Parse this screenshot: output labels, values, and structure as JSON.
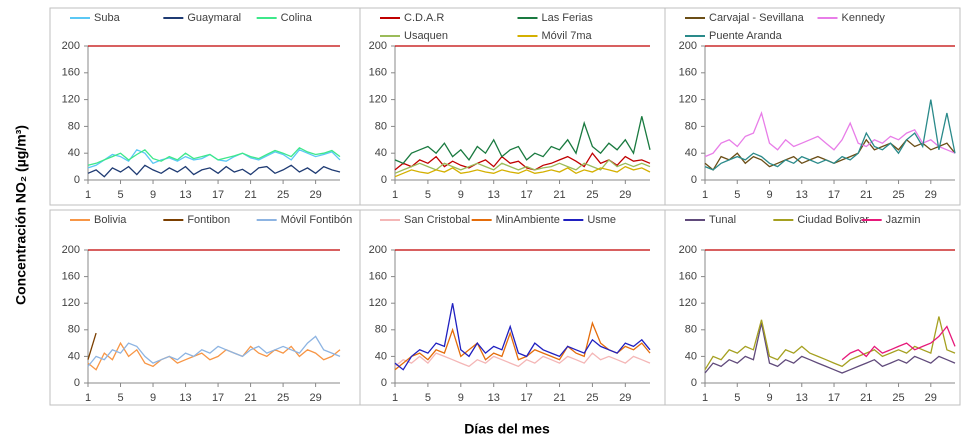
{
  "y_label": "Concentración NO₂ (µg/m³)",
  "x_label": "Días del mes",
  "chart_data": [
    {
      "type": "line",
      "x": [
        1,
        2,
        3,
        4,
        5,
        6,
        7,
        8,
        9,
        10,
        11,
        12,
        13,
        14,
        15,
        16,
        17,
        18,
        19,
        20,
        21,
        22,
        23,
        24,
        25,
        26,
        27,
        28,
        29,
        30,
        31,
        32
      ],
      "xlim": [
        1,
        32
      ],
      "xticks": [
        1,
        5,
        9,
        13,
        17,
        21,
        25,
        29
      ],
      "ylim": [
        0,
        200
      ],
      "yticks": [
        0,
        40,
        80,
        120,
        160,
        200
      ],
      "threshold": {
        "value": 200,
        "color": "#c00000"
      },
      "series": [
        {
          "name": "Suba",
          "color": "#5bc8f5",
          "values": [
            18,
            22,
            30,
            38,
            35,
            28,
            45,
            40,
            25,
            30,
            33,
            28,
            35,
            30,
            32,
            38,
            30,
            28,
            35,
            40,
            33,
            30,
            36,
            42,
            38,
            30,
            45,
            40,
            35,
            38,
            42,
            30
          ]
        },
        {
          "name": "Guaymaral",
          "color": "#1f3b73",
          "values": [
            10,
            15,
            5,
            18,
            12,
            20,
            8,
            22,
            15,
            10,
            18,
            12,
            20,
            8,
            15,
            18,
            10,
            20,
            12,
            16,
            8,
            18,
            20,
            10,
            15,
            22,
            12,
            18,
            10,
            20,
            15,
            12
          ]
        },
        {
          "name": "Colina",
          "color": "#3ee88a",
          "values": [
            22,
            25,
            30,
            35,
            40,
            30,
            38,
            45,
            32,
            28,
            35,
            30,
            40,
            32,
            35,
            38,
            30,
            33,
            36,
            40,
            35,
            32,
            38,
            44,
            40,
            35,
            48,
            42,
            38,
            40,
            44,
            35
          ]
        }
      ]
    },
    {
      "type": "line",
      "x": [
        1,
        2,
        3,
        4,
        5,
        6,
        7,
        8,
        9,
        10,
        11,
        12,
        13,
        14,
        15,
        16,
        17,
        18,
        19,
        20,
        21,
        22,
        23,
        24,
        25,
        26,
        27,
        28,
        29,
        30,
        31,
        32
      ],
      "xlim": [
        1,
        32
      ],
      "xticks": [
        1,
        5,
        9,
        13,
        17,
        21,
        25,
        29
      ],
      "ylim": [
        0,
        200
      ],
      "yticks": [
        0,
        40,
        80,
        120,
        160,
        200
      ],
      "threshold": {
        "value": 200,
        "color": "#c00000"
      },
      "series": [
        {
          "name": "C.D.A.R",
          "color": "#c00000",
          "values": [
            15,
            25,
            20,
            30,
            25,
            35,
            20,
            28,
            22,
            18,
            25,
            30,
            20,
            35,
            25,
            28,
            18,
            15,
            22,
            25,
            30,
            35,
            28,
            20,
            40,
            25,
            30,
            22,
            35,
            28,
            30,
            25
          ]
        },
        {
          "name": "Las Ferias",
          "color": "#1a7a40",
          "values": [
            30,
            25,
            40,
            45,
            50,
            40,
            55,
            35,
            45,
            30,
            50,
            40,
            60,
            35,
            45,
            50,
            30,
            40,
            35,
            50,
            45,
            60,
            40,
            85,
            50,
            40,
            55,
            45,
            60,
            40,
            95,
            45
          ]
        },
        {
          "name": "Usaquen",
          "color": "#9bbb59",
          "values": [
            10,
            15,
            20,
            25,
            20,
            15,
            25,
            20,
            15,
            20,
            25,
            20,
            15,
            25,
            20,
            15,
            20,
            15,
            18,
            20,
            25,
            20,
            15,
            25,
            20,
            15,
            30,
            20,
            25,
            20,
            25,
            20
          ]
        },
        {
          "name": "Móvil 7ma",
          "color": "#d4b000",
          "values": [
            5,
            10,
            15,
            12,
            10,
            15,
            12,
            18,
            10,
            12,
            15,
            12,
            10,
            15,
            12,
            10,
            15,
            10,
            12,
            15,
            12,
            18,
            10,
            15,
            12,
            18,
            15,
            12,
            20,
            15,
            18,
            12
          ]
        }
      ]
    },
    {
      "type": "line",
      "x": [
        1,
        2,
        3,
        4,
        5,
        6,
        7,
        8,
        9,
        10,
        11,
        12,
        13,
        14,
        15,
        16,
        17,
        18,
        19,
        20,
        21,
        22,
        23,
        24,
        25,
        26,
        27,
        28,
        29,
        30,
        31,
        32
      ],
      "xlim": [
        1,
        32
      ],
      "xticks": [
        1,
        5,
        9,
        13,
        17,
        21,
        25,
        29
      ],
      "ylim": [
        0,
        200
      ],
      "yticks": [
        0,
        40,
        80,
        120,
        160,
        200
      ],
      "threshold": {
        "value": 200,
        "color": "#c00000"
      },
      "series": [
        {
          "name": "Carvajal - Sevillana",
          "color": "#6b4e16",
          "values": [
            25,
            15,
            35,
            30,
            40,
            25,
            35,
            30,
            20,
            25,
            30,
            35,
            25,
            30,
            35,
            30,
            25,
            30,
            35,
            40,
            60,
            45,
            50,
            55,
            45,
            60,
            50,
            55,
            45,
            50,
            55,
            40
          ]
        },
        {
          "name": "Kennedy",
          "color": "#e87de8",
          "values": [
            35,
            40,
            55,
            60,
            50,
            65,
            70,
            100,
            55,
            45,
            60,
            50,
            55,
            60,
            65,
            55,
            45,
            60,
            85,
            55,
            50,
            60,
            55,
            65,
            60,
            70,
            75,
            55,
            60,
            50,
            45,
            40
          ]
        },
        {
          "name": "Puente Aranda",
          "color": "#2a8a8a",
          "values": [
            20,
            15,
            25,
            30,
            35,
            30,
            40,
            35,
            25,
            20,
            30,
            25,
            35,
            30,
            25,
            30,
            25,
            35,
            30,
            40,
            70,
            50,
            45,
            55,
            40,
            60,
            70,
            50,
            120,
            45,
            100,
            40
          ]
        }
      ]
    },
    {
      "type": "line",
      "x": [
        1,
        2,
        3,
        4,
        5,
        6,
        7,
        8,
        9,
        10,
        11,
        12,
        13,
        14,
        15,
        16,
        17,
        18,
        19,
        20,
        21,
        22,
        23,
        24,
        25,
        26,
        27,
        28,
        29,
        30,
        31,
        32
      ],
      "xlim": [
        1,
        32
      ],
      "xticks": [
        1,
        5,
        9,
        13,
        17,
        21,
        25,
        29
      ],
      "ylim": [
        0,
        200
      ],
      "yticks": [
        0,
        40,
        80,
        120,
        160,
        200
      ],
      "threshold": {
        "value": 200,
        "color": "#c00000"
      },
      "series": [
        {
          "name": "Bolivia",
          "color": "#f79646",
          "values": [
            30,
            20,
            45,
            35,
            60,
            40,
            50,
            30,
            25,
            35,
            40,
            30,
            35,
            40,
            45,
            35,
            40,
            50,
            45,
            40,
            55,
            45,
            40,
            50,
            45,
            55,
            40,
            50,
            45,
            35,
            40,
            50
          ]
        },
        {
          "name": "Fontibon",
          "color": "#7b3f00",
          "values": [
            35,
            75,
            null,
            null,
            null,
            null,
            null,
            null,
            null,
            null,
            null,
            null,
            null,
            null,
            null,
            null,
            null,
            null,
            null,
            null,
            null,
            null,
            null,
            null,
            null,
            null,
            null,
            null,
            null,
            null,
            null,
            null
          ]
        },
        {
          "name": "Móvil Fontibón",
          "color": "#8db4e2",
          "values": [
            25,
            40,
            35,
            50,
            45,
            60,
            55,
            40,
            30,
            35,
            40,
            35,
            45,
            40,
            50,
            45,
            55,
            50,
            45,
            40,
            50,
            55,
            45,
            50,
            55,
            50,
            45,
            60,
            70,
            50,
            45,
            40
          ]
        }
      ]
    },
    {
      "type": "line",
      "x": [
        1,
        2,
        3,
        4,
        5,
        6,
        7,
        8,
        9,
        10,
        11,
        12,
        13,
        14,
        15,
        16,
        17,
        18,
        19,
        20,
        21,
        22,
        23,
        24,
        25,
        26,
        27,
        28,
        29,
        30,
        31,
        32
      ],
      "xlim": [
        1,
        32
      ],
      "xticks": [
        1,
        5,
        9,
        13,
        17,
        21,
        25,
        29
      ],
      "ylim": [
        0,
        200
      ],
      "yticks": [
        0,
        40,
        80,
        120,
        160,
        200
      ],
      "threshold": {
        "value": 200,
        "color": "#c00000"
      },
      "series": [
        {
          "name": "San Cristobal",
          "color": "#f4b6b6",
          "values": [
            25,
            35,
            30,
            40,
            30,
            45,
            40,
            35,
            30,
            25,
            35,
            30,
            40,
            35,
            30,
            25,
            35,
            30,
            40,
            35,
            30,
            40,
            35,
            30,
            45,
            35,
            40,
            35,
            30,
            40,
            35,
            30
          ]
        },
        {
          "name": "MinAmbiente",
          "color": "#e46c0a",
          "values": [
            20,
            30,
            40,
            45,
            35,
            50,
            45,
            80,
            40,
            50,
            60,
            35,
            45,
            40,
            75,
            35,
            40,
            50,
            45,
            40,
            35,
            55,
            45,
            40,
            90,
            60,
            50,
            45,
            55,
            50,
            60,
            45
          ]
        },
        {
          "name": "Usme",
          "color": "#2020c0",
          "values": [
            30,
            20,
            40,
            50,
            45,
            60,
            55,
            120,
            50,
            40,
            60,
            45,
            55,
            50,
            85,
            45,
            40,
            60,
            50,
            45,
            40,
            55,
            50,
            45,
            65,
            55,
            50,
            45,
            60,
            55,
            65,
            50
          ]
        }
      ]
    },
    {
      "type": "line",
      "x": [
        1,
        2,
        3,
        4,
        5,
        6,
        7,
        8,
        9,
        10,
        11,
        12,
        13,
        14,
        15,
        16,
        17,
        18,
        19,
        20,
        21,
        22,
        23,
        24,
        25,
        26,
        27,
        28,
        29,
        30,
        31,
        32
      ],
      "xlim": [
        1,
        32
      ],
      "xticks": [
        1,
        5,
        9,
        13,
        17,
        21,
        25,
        29
      ],
      "ylim": [
        0,
        200
      ],
      "yticks": [
        0,
        40,
        80,
        120,
        160,
        200
      ],
      "threshold": {
        "value": 200,
        "color": "#c00000"
      },
      "series": [
        {
          "name": "Tunal",
          "color": "#604a7b",
          "values": [
            15,
            30,
            25,
            35,
            30,
            40,
            35,
            90,
            30,
            25,
            35,
            30,
            40,
            35,
            30,
            25,
            20,
            15,
            20,
            25,
            30,
            35,
            25,
            30,
            35,
            30,
            40,
            35,
            30,
            40,
            35,
            30
          ]
        },
        {
          "name": "Ciudad Bolivar",
          "color": "#a5a020",
          "values": [
            20,
            40,
            35,
            50,
            45,
            55,
            50,
            95,
            40,
            35,
            50,
            45,
            55,
            45,
            40,
            35,
            30,
            25,
            35,
            40,
            45,
            50,
            40,
            45,
            50,
            45,
            55,
            50,
            45,
            100,
            50,
            45
          ]
        },
        {
          "name": "Jazmin",
          "color": "#e6197a",
          "values": [
            null,
            null,
            null,
            null,
            null,
            null,
            null,
            null,
            null,
            null,
            null,
            null,
            null,
            null,
            null,
            null,
            null,
            35,
            45,
            50,
            40,
            55,
            45,
            50,
            55,
            60,
            50,
            55,
            60,
            70,
            85,
            55
          ]
        }
      ]
    }
  ]
}
